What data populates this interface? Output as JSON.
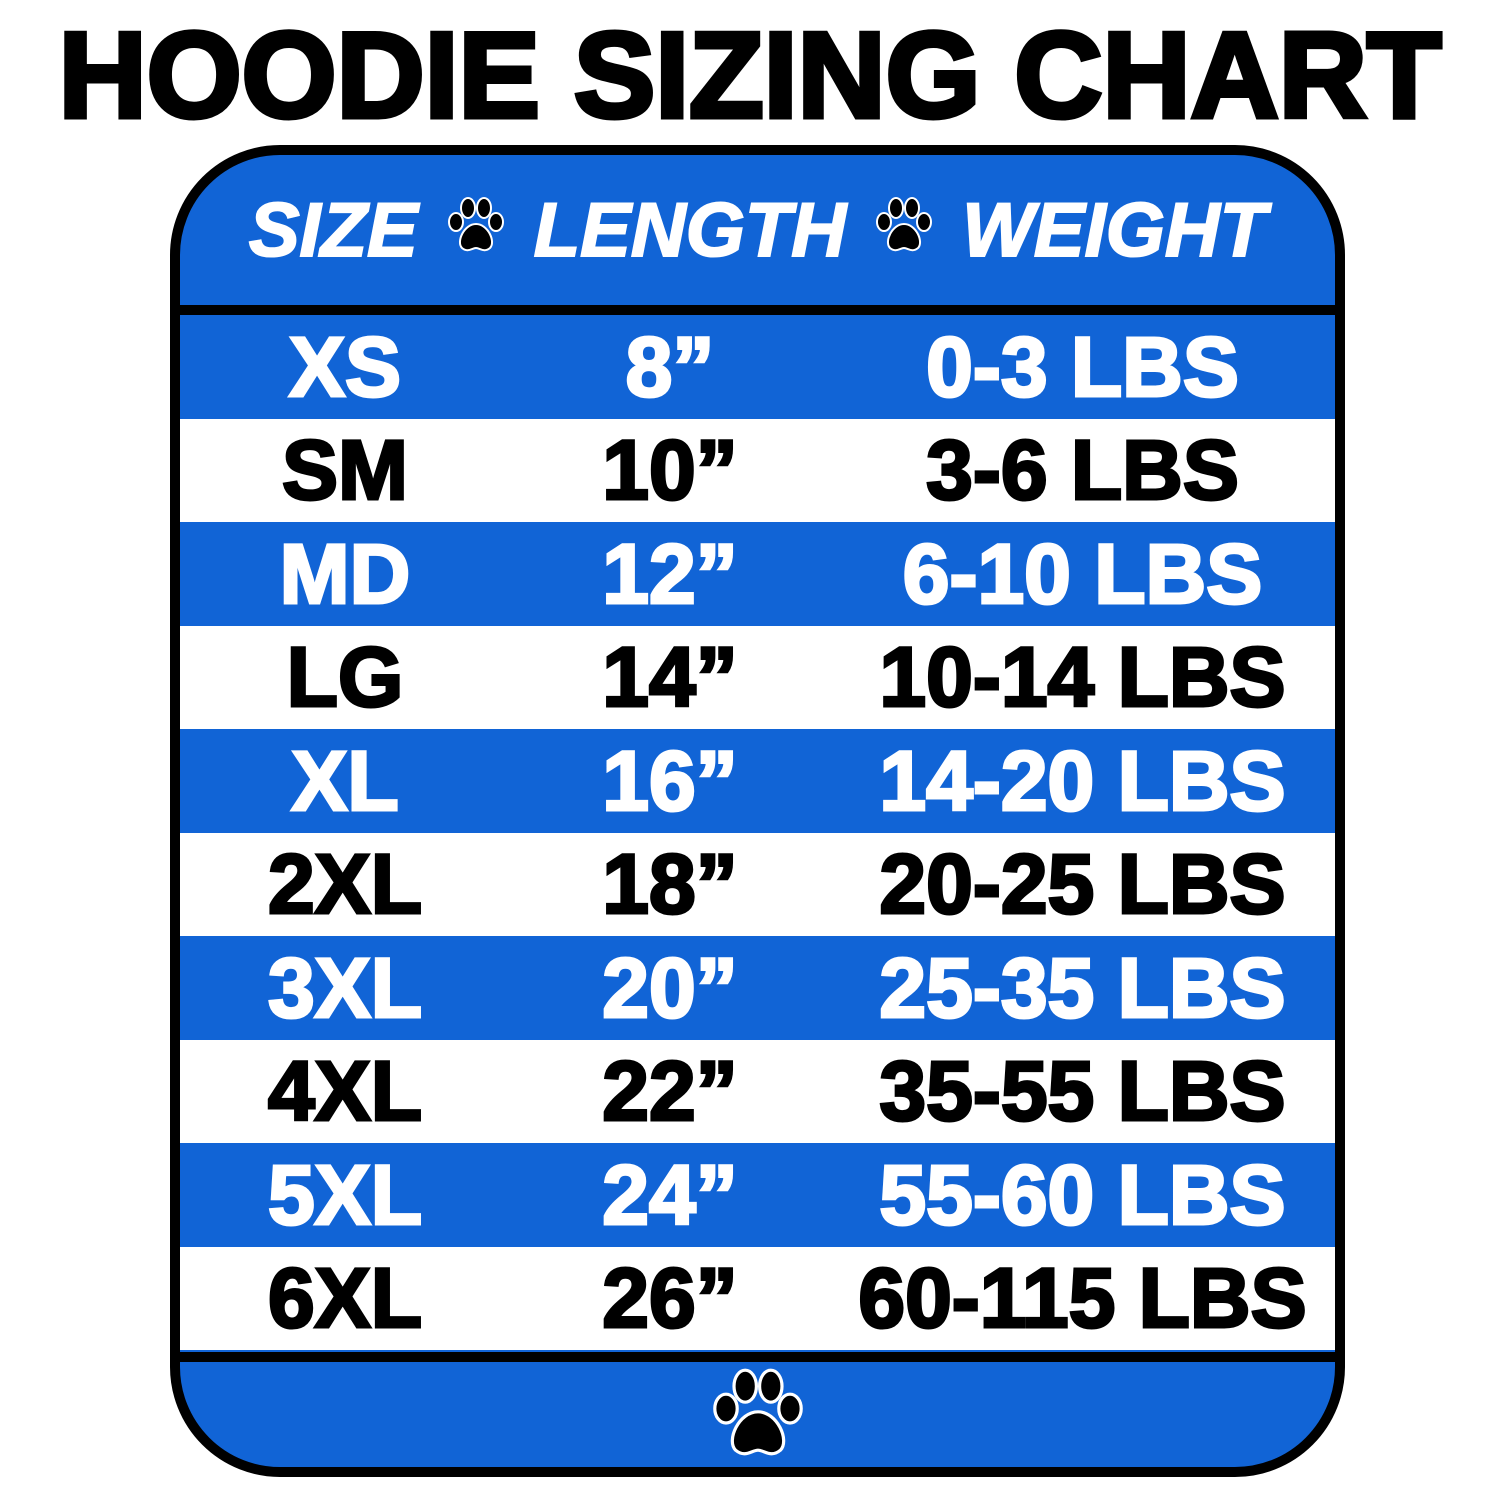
{
  "title": "HOODIE SIZING CHART",
  "colors": {
    "band_blue": "#1164d6",
    "white_band": "#ffffff",
    "border": "#000000"
  },
  "icons": {
    "separator": "paw-print-icon",
    "footer": "paw-print-icon"
  },
  "chart_data": {
    "type": "table",
    "title": "HOODIE SIZING CHART",
    "columns": [
      "SIZE",
      "LENGTH",
      "WEIGHT"
    ],
    "rows": [
      {
        "size": "XS",
        "length": "8”",
        "weight": "0-3 LBS"
      },
      {
        "size": "SM",
        "length": "10”",
        "weight": "3-6 LBS"
      },
      {
        "size": "MD",
        "length": "12”",
        "weight": "6-10 LBS"
      },
      {
        "size": "LG",
        "length": "14”",
        "weight": "10-14 LBS"
      },
      {
        "size": "XL",
        "length": "16”",
        "weight": "14-20 LBS"
      },
      {
        "size": "2XL",
        "length": "18”",
        "weight": "20-25 LBS"
      },
      {
        "size": "3XL",
        "length": "20”",
        "weight": "25-35 LBS"
      },
      {
        "size": "4XL",
        "length": "22”",
        "weight": "35-55 LBS"
      },
      {
        "size": "5XL",
        "length": "24”",
        "weight": "55-60 LBS"
      },
      {
        "size": "6XL",
        "length": "26”",
        "weight": "60-115 LBS"
      }
    ]
  }
}
